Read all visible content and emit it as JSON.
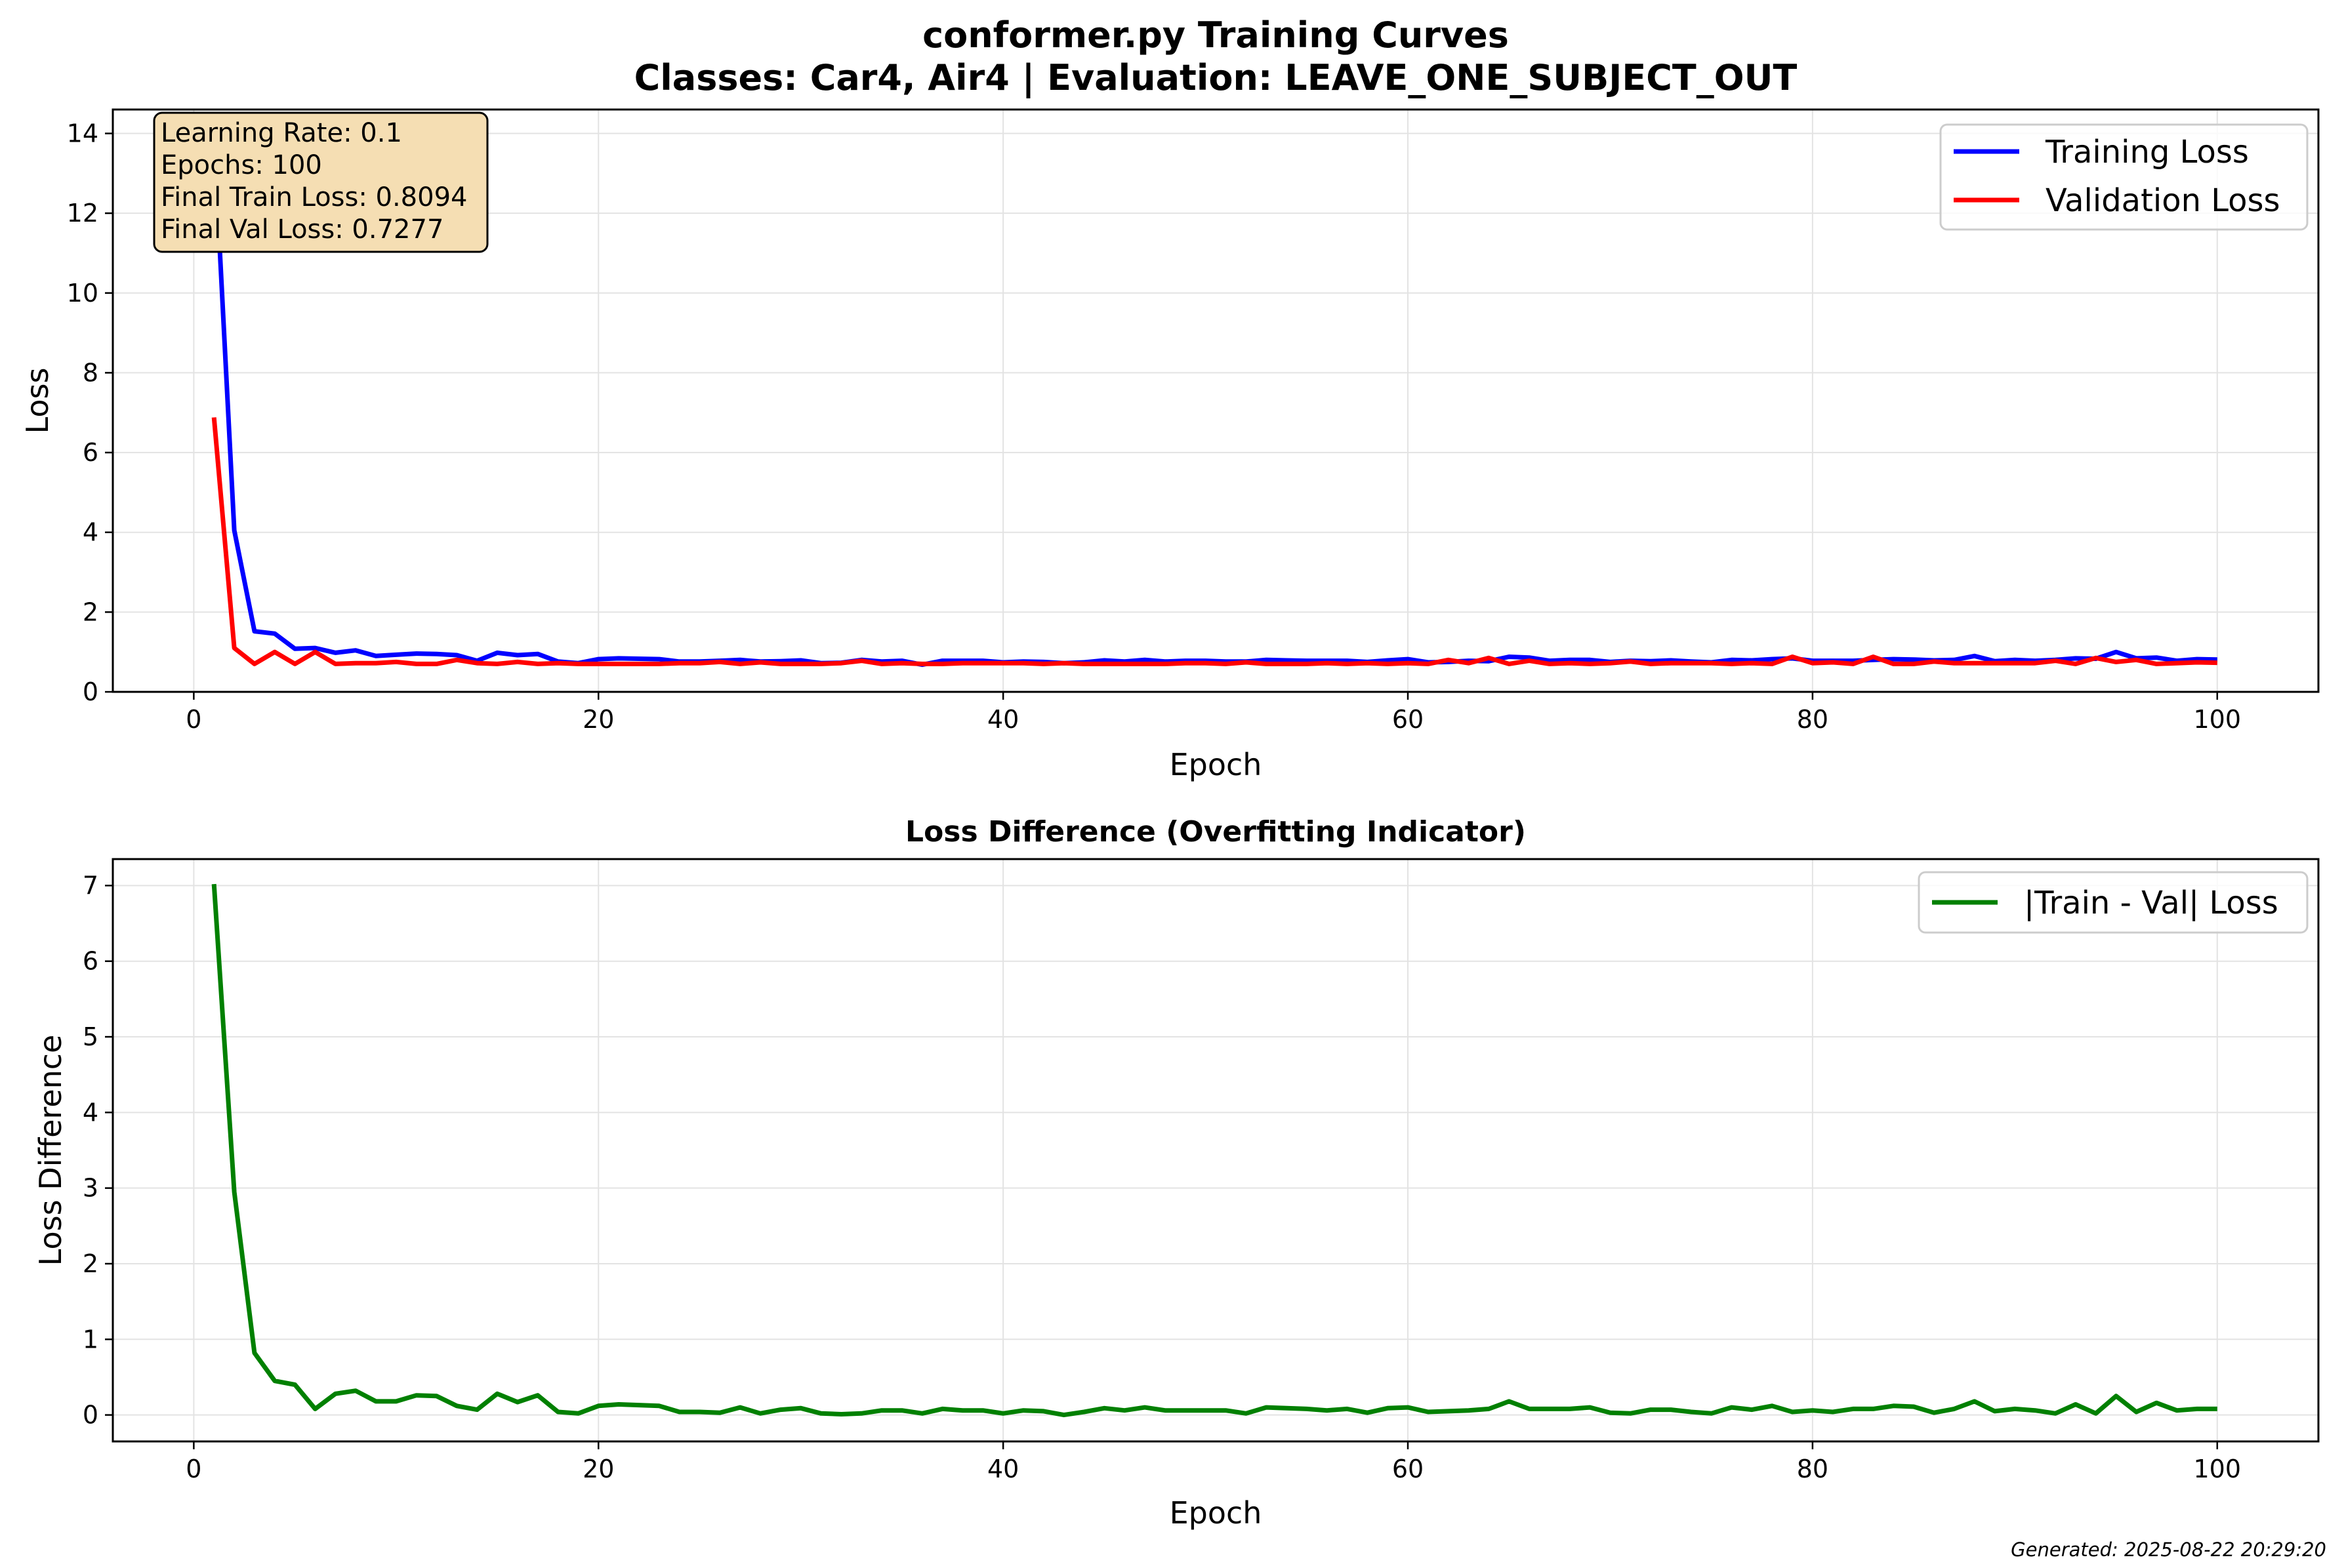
{
  "figure": {
    "title_line1": "conformer.py Training Curves",
    "title_line2": "Classes: Car4, Air4 | Evaluation: LEAVE_ONE_SUBJECT_OUT",
    "footer": "Generated: 2025-08-22 20:29:20"
  },
  "info_box": {
    "lines": [
      "Learning Rate: 0.1",
      "Epochs: 100",
      "Final Train Loss: 0.8094",
      "Final Val Loss: 0.7277"
    ],
    "background": "#f5deb3"
  },
  "chart_data": [
    {
      "type": "line",
      "title": "",
      "xlabel": "Epoch",
      "ylabel": "Loss",
      "xlim": [
        -4,
        105
      ],
      "ylim": [
        0,
        14.6
      ],
      "xticks": [
        0,
        20,
        40,
        60,
        80,
        100
      ],
      "yticks": [
        0,
        2,
        4,
        6,
        8,
        10,
        12,
        14
      ],
      "grid": true,
      "legend_position": "upper right",
      "series": [
        {
          "name": "Training Loss",
          "color": "#0000ff",
          "x": [
            1,
            2,
            3,
            4,
            5,
            6,
            7,
            8,
            9,
            10,
            11,
            12,
            13,
            14,
            15,
            16,
            17,
            18,
            19,
            20,
            21,
            22,
            23,
            24,
            25,
            26,
            27,
            28,
            29,
            30,
            31,
            32,
            33,
            34,
            35,
            36,
            37,
            38,
            39,
            40,
            41,
            42,
            43,
            44,
            45,
            46,
            47,
            48,
            49,
            50,
            51,
            52,
            53,
            54,
            55,
            56,
            57,
            58,
            59,
            60,
            61,
            62,
            63,
            64,
            65,
            66,
            67,
            68,
            69,
            70,
            71,
            72,
            73,
            74,
            75,
            76,
            77,
            78,
            79,
            80,
            81,
            82,
            83,
            84,
            85,
            86,
            87,
            88,
            89,
            90,
            91,
            92,
            93,
            94,
            95,
            96,
            97,
            98,
            99,
            100
          ],
          "values": [
            13.9,
            4.05,
            1.52,
            1.46,
            1.08,
            1.1,
            0.98,
            1.04,
            0.9,
            0.93,
            0.96,
            0.95,
            0.92,
            0.78,
            0.98,
            0.92,
            0.95,
            0.76,
            0.72,
            0.82,
            0.84,
            0.83,
            0.82,
            0.76,
            0.76,
            0.78,
            0.8,
            0.76,
            0.77,
            0.79,
            0.72,
            0.73,
            0.8,
            0.76,
            0.78,
            0.68,
            0.78,
            0.78,
            0.78,
            0.74,
            0.76,
            0.75,
            0.72,
            0.74,
            0.79,
            0.76,
            0.8,
            0.76,
            0.78,
            0.78,
            0.76,
            0.76,
            0.8,
            0.79,
            0.78,
            0.78,
            0.78,
            0.75,
            0.79,
            0.82,
            0.74,
            0.75,
            0.78,
            0.77,
            0.88,
            0.86,
            0.78,
            0.8,
            0.8,
            0.75,
            0.78,
            0.77,
            0.79,
            0.76,
            0.74,
            0.8,
            0.79,
            0.82,
            0.84,
            0.78,
            0.78,
            0.78,
            0.8,
            0.82,
            0.81,
            0.79,
            0.8,
            0.9,
            0.77,
            0.8,
            0.78,
            0.8,
            0.84,
            0.83,
            1.0,
            0.84,
            0.86,
            0.78,
            0.82,
            0.81
          ]
        },
        {
          "name": "Validation Loss",
          "color": "#ff0000",
          "x": [
            1,
            2,
            3,
            4,
            5,
            6,
            7,
            8,
            9,
            10,
            11,
            12,
            13,
            14,
            15,
            16,
            17,
            18,
            19,
            20,
            21,
            22,
            23,
            24,
            25,
            26,
            27,
            28,
            29,
            30,
            31,
            32,
            33,
            34,
            35,
            36,
            37,
            38,
            39,
            40,
            41,
            42,
            43,
            44,
            45,
            46,
            47,
            48,
            49,
            50,
            51,
            52,
            53,
            54,
            55,
            56,
            57,
            58,
            59,
            60,
            61,
            62,
            63,
            64,
            65,
            66,
            67,
            68,
            69,
            70,
            71,
            72,
            73,
            74,
            75,
            76,
            77,
            78,
            79,
            80,
            81,
            82,
            83,
            84,
            85,
            86,
            87,
            88,
            89,
            90,
            91,
            92,
            93,
            94,
            95,
            96,
            97,
            98,
            99,
            100
          ],
          "values": [
            6.88,
            1.1,
            0.7,
            1.0,
            0.7,
            1.0,
            0.7,
            0.72,
            0.72,
            0.75,
            0.7,
            0.7,
            0.8,
            0.72,
            0.7,
            0.75,
            0.7,
            0.72,
            0.7,
            0.7,
            0.7,
            0.7,
            0.7,
            0.72,
            0.72,
            0.75,
            0.7,
            0.74,
            0.7,
            0.7,
            0.7,
            0.72,
            0.78,
            0.7,
            0.72,
            0.7,
            0.7,
            0.72,
            0.72,
            0.72,
            0.72,
            0.7,
            0.72,
            0.7,
            0.7,
            0.7,
            0.7,
            0.7,
            0.72,
            0.72,
            0.7,
            0.74,
            0.7,
            0.7,
            0.7,
            0.72,
            0.7,
            0.72,
            0.7,
            0.72,
            0.7,
            0.8,
            0.72,
            0.85,
            0.7,
            0.78,
            0.7,
            0.72,
            0.7,
            0.72,
            0.76,
            0.7,
            0.72,
            0.72,
            0.72,
            0.7,
            0.72,
            0.7,
            0.88,
            0.72,
            0.74,
            0.7,
            0.88,
            0.7,
            0.7,
            0.76,
            0.72,
            0.72,
            0.72,
            0.72,
            0.72,
            0.78,
            0.7,
            0.85,
            0.75,
            0.8,
            0.7,
            0.72,
            0.74,
            0.73
          ]
        }
      ]
    },
    {
      "type": "line",
      "title": "Loss Difference (Overfitting Indicator)",
      "xlabel": "Epoch",
      "ylabel": "Loss Difference",
      "xlim": [
        -4,
        105
      ],
      "ylim": [
        -0.35,
        7.35
      ],
      "xticks": [
        0,
        20,
        40,
        60,
        80,
        100
      ],
      "yticks": [
        0,
        1,
        2,
        3,
        4,
        5,
        6,
        7
      ],
      "grid": true,
      "legend_position": "upper right",
      "series": [
        {
          "name": "|Train - Val| Loss",
          "color": "#008000",
          "x": [
            1,
            2,
            3,
            4,
            5,
            6,
            7,
            8,
            9,
            10,
            11,
            12,
            13,
            14,
            15,
            16,
            17,
            18,
            19,
            20,
            21,
            22,
            23,
            24,
            25,
            26,
            27,
            28,
            29,
            30,
            31,
            32,
            33,
            34,
            35,
            36,
            37,
            38,
            39,
            40,
            41,
            42,
            43,
            44,
            45,
            46,
            47,
            48,
            49,
            50,
            51,
            52,
            53,
            54,
            55,
            56,
            57,
            58,
            59,
            60,
            61,
            62,
            63,
            64,
            65,
            66,
            67,
            68,
            69,
            70,
            71,
            72,
            73,
            74,
            75,
            76,
            77,
            78,
            79,
            80,
            81,
            82,
            83,
            84,
            85,
            86,
            87,
            88,
            89,
            90,
            91,
            92,
            93,
            94,
            95,
            96,
            97,
            98,
            99,
            100
          ],
          "values": [
            7.02,
            2.95,
            0.82,
            0.45,
            0.4,
            0.08,
            0.28,
            0.32,
            0.18,
            0.18,
            0.26,
            0.25,
            0.12,
            0.07,
            0.28,
            0.17,
            0.26,
            0.04,
            0.02,
            0.12,
            0.14,
            0.13,
            0.12,
            0.04,
            0.04,
            0.03,
            0.1,
            0.02,
            0.07,
            0.09,
            0.02,
            0.01,
            0.02,
            0.06,
            0.06,
            0.02,
            0.08,
            0.06,
            0.06,
            0.02,
            0.06,
            0.05,
            0.0,
            0.04,
            0.09,
            0.06,
            0.1,
            0.06,
            0.06,
            0.06,
            0.06,
            0.02,
            0.1,
            0.09,
            0.08,
            0.06,
            0.08,
            0.03,
            0.09,
            0.1,
            0.04,
            0.05,
            0.06,
            0.08,
            0.18,
            0.08,
            0.08,
            0.08,
            0.1,
            0.03,
            0.02,
            0.07,
            0.07,
            0.04,
            0.02,
            0.1,
            0.07,
            0.12,
            0.04,
            0.06,
            0.04,
            0.08,
            0.08,
            0.12,
            0.11,
            0.03,
            0.08,
            0.18,
            0.05,
            0.08,
            0.06,
            0.02,
            0.14,
            0.02,
            0.25,
            0.04,
            0.16,
            0.06,
            0.08,
            0.08
          ]
        }
      ]
    }
  ]
}
